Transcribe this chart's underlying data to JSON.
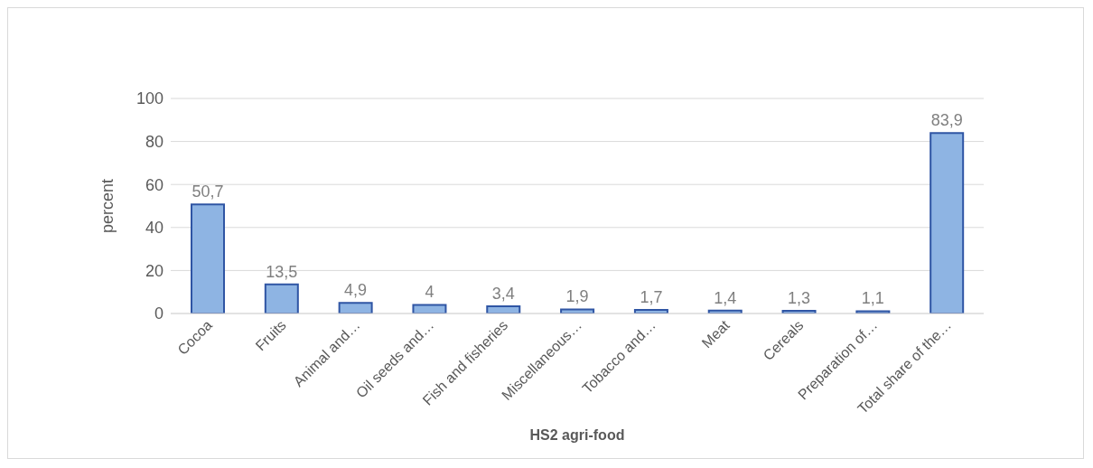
{
  "chart_data": {
    "type": "bar",
    "xlabel": "HS2 agri-food",
    "ylabel": "percent",
    "categories": [
      "Cocoa",
      "Fruits",
      "Animal and…",
      "Oil seeds and…",
      "Fish and fisheries",
      "Miscellaneous…",
      "Tobacco and…",
      "Meat",
      "Cereals",
      "Preparation of…",
      "Total share of the…"
    ],
    "values": [
      50.7,
      13.5,
      4.9,
      4,
      3.4,
      1.9,
      1.7,
      1.4,
      1.3,
      1.1,
      83.9
    ],
    "value_labels": [
      "50,7",
      "13,5",
      "4,9",
      "4",
      "3,4",
      "1,9",
      "1,7",
      "1,4",
      "1,3",
      "1,1",
      "83,9"
    ],
    "color": "#8eb4e3",
    "ylim": [
      0,
      100
    ],
    "yticks": [
      0,
      20,
      40,
      60,
      80,
      100
    ],
    "grid": "y",
    "legend": false
  }
}
